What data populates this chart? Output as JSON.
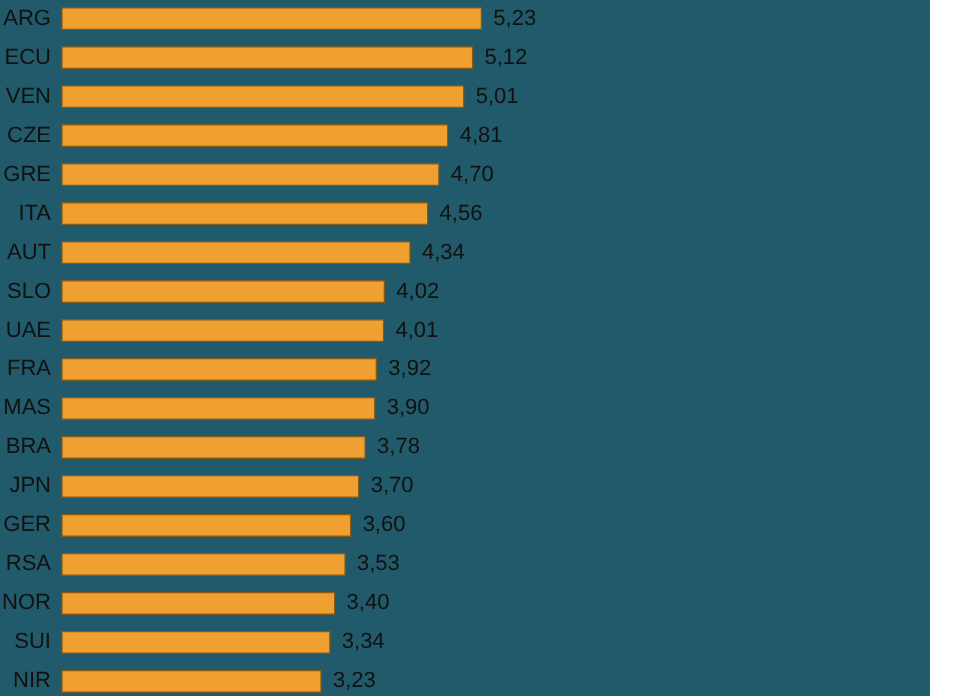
{
  "chart_data": {
    "type": "bar",
    "orientation": "horizontal",
    "categories": [
      "ARG",
      "ECU",
      "VEN",
      "CZE",
      "GRE",
      "ITA",
      "AUT",
      "SLO",
      "UAE",
      "FRA",
      "MAS",
      "BRA",
      "JPN",
      "GER",
      "RSA",
      "NOR",
      "SUI",
      "NIR"
    ],
    "values": [
      5.23,
      5.12,
      5.01,
      4.81,
      4.7,
      4.56,
      4.34,
      4.02,
      4.01,
      3.92,
      3.9,
      3.78,
      3.7,
      3.6,
      3.53,
      3.4,
      3.34,
      3.23
    ],
    "value_labels": [
      "5,23",
      "5,12",
      "5,01",
      "4,81",
      "4,70",
      "4,56",
      "4,34",
      "4,02",
      "4,01",
      "3,92",
      "3,90",
      "3,78",
      "3,70",
      "3,60",
      "3,53",
      "3,40",
      "3,34",
      "3,23"
    ],
    "color": "#f0a030",
    "grid": false
  }
}
